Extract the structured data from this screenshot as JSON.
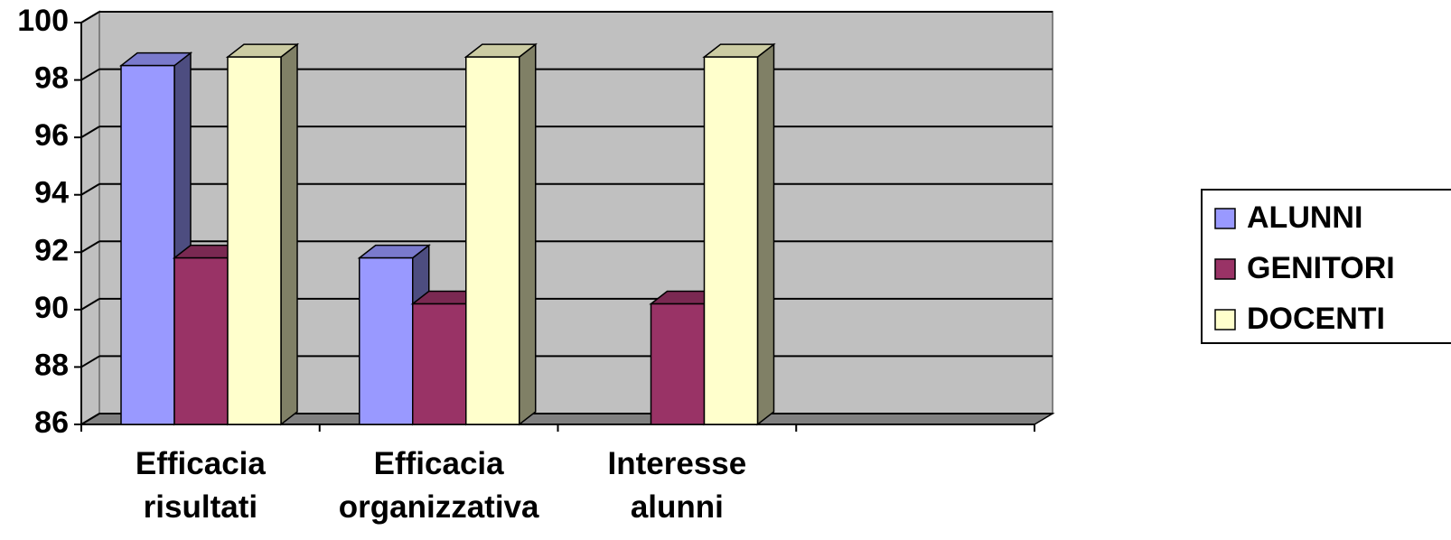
{
  "chart_data": {
    "type": "bar3d",
    "categories": [
      "Efficacia risultati",
      "Efficacia organizzativa",
      "Interesse alunni",
      null
    ],
    "series": [
      {
        "name": "ALUNNI",
        "color": "#9999ff",
        "values": [
          98.5,
          91.8,
          null,
          null
        ]
      },
      {
        "name": "GENITORI",
        "color": "#993366",
        "values": [
          91.8,
          90.2,
          90.2,
          null
        ]
      },
      {
        "name": "DOCENTI",
        "color": "#ffffcc",
        "values": [
          98.8,
          98.8,
          98.8,
          null
        ]
      }
    ],
    "ylim": [
      86,
      100
    ],
    "yticks": [
      86,
      88,
      90,
      92,
      94,
      96,
      98,
      100
    ],
    "grid": true,
    "legend": "right"
  }
}
